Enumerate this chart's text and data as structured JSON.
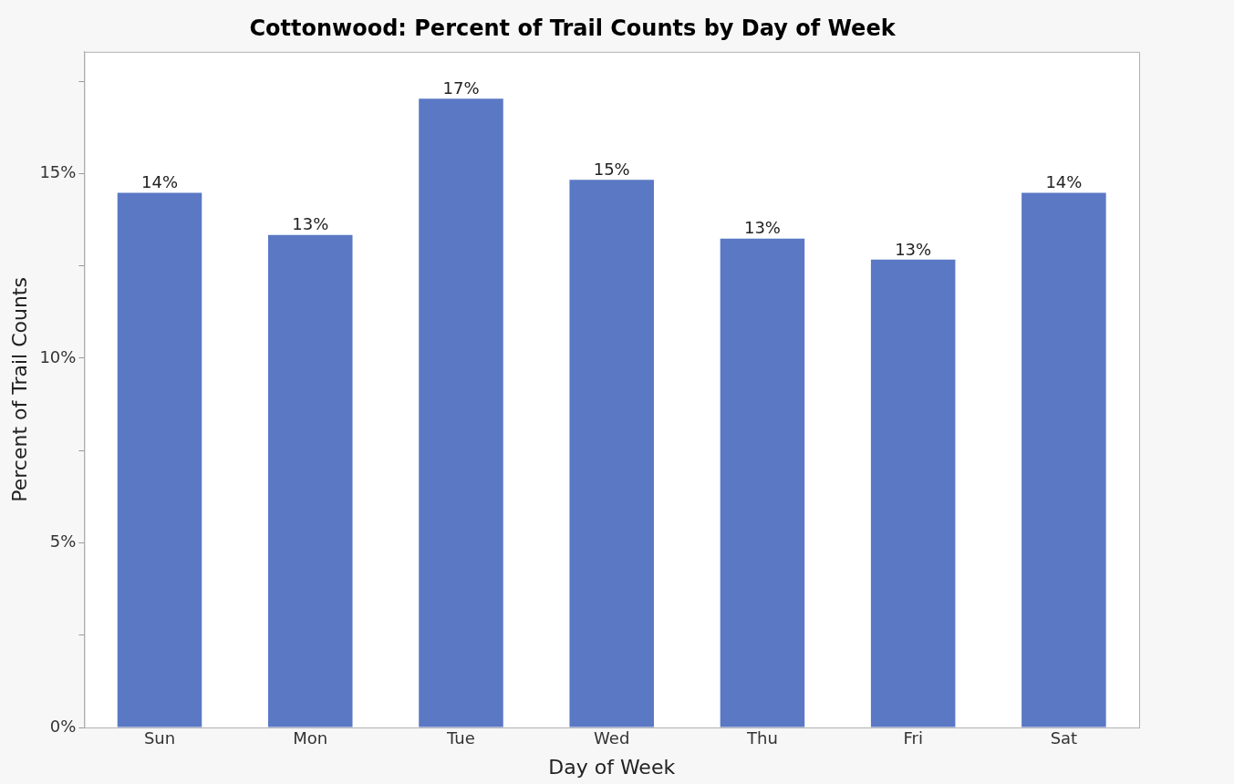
{
  "chart_data": {
    "type": "bar",
    "title": "Cottonwood: Percent of Trail Counts by Day of Week",
    "xlabel": "Day of Week",
    "ylabel": "Percent of Trail Counts",
    "categories": [
      "Sun",
      "Mon",
      "Tue",
      "Wed",
      "Thu",
      "Fri",
      "Sat"
    ],
    "values": [
      14.48,
      13.34,
      17.03,
      14.83,
      13.24,
      12.67,
      14.48
    ],
    "value_labels": [
      "14%",
      "13%",
      "17%",
      "15%",
      "13%",
      "13%",
      "14%"
    ],
    "color": "#5a78c4",
    "ylim": [
      0,
      18.3
    ],
    "yticks": [
      {
        "value": 0,
        "label": "0%"
      },
      {
        "value": 2.5,
        "label": null
      },
      {
        "value": 5,
        "label": "5%"
      },
      {
        "value": 7.5,
        "label": null
      },
      {
        "value": 10,
        "label": "10%"
      },
      {
        "value": 12.5,
        "label": null
      },
      {
        "value": 15,
        "label": "15%"
      },
      {
        "value": 17.5,
        "label": null
      }
    ],
    "grid": false,
    "legend": false
  }
}
